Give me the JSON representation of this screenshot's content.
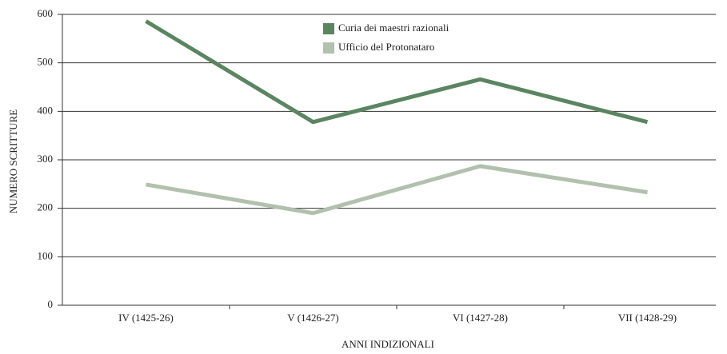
{
  "chart_data": {
    "type": "line",
    "categories": [
      "IV (1425-26)",
      "V (1426-27)",
      "VI (1427-28)",
      "VII (1428-29)"
    ],
    "series": [
      {
        "name": "Curia dei maestri razionali",
        "color": "#5a8560",
        "values": [
          586,
          378,
          466,
          378
        ]
      },
      {
        "name": "Ufficio del Protonataro",
        "color": "#b2c0ae",
        "values": [
          249,
          190,
          287,
          233
        ]
      }
    ],
    "ylim": [
      0,
      600
    ],
    "yticks": [
      0,
      100,
      200,
      300,
      400,
      500,
      600
    ],
    "ylabel": "NUMERO SCRITTURE",
    "xlabel": "ANNI  INDIZIONALI",
    "grid": true,
    "legend": "top"
  }
}
